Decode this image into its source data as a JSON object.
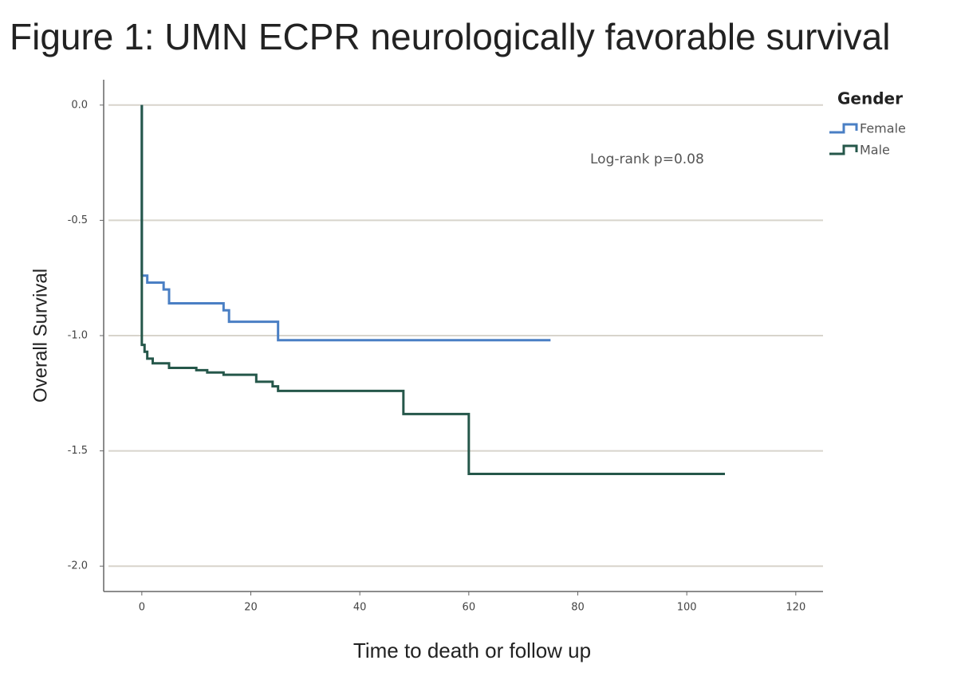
{
  "chart_data": {
    "type": "line",
    "title": "Figure 1: UMN ECPR neurologically favorable survival",
    "x_label": "Time to death or follow up",
    "y_label": "Overall Survival",
    "annotation": "Log-rank p=0.08",
    "legend_title": "Gender",
    "legend_position": "right",
    "grid": true,
    "xlim": [
      -7,
      125
    ],
    "ylim": [
      -2.11,
      0.11
    ],
    "xticks": [
      0,
      20,
      40,
      60,
      80,
      100,
      120
    ],
    "yticks": [
      {
        "value": 0,
        "label": "0.0"
      },
      -0.5,
      {
        "value": -1,
        "label": "-1.0"
      },
      -1.5,
      {
        "value": -2,
        "label": "-2.0"
      }
    ],
    "series": [
      {
        "name": "Female",
        "color": "#4a7fc4",
        "x": [
          0,
          0,
          1,
          1,
          4,
          4,
          5,
          5,
          15,
          15,
          16,
          16,
          25,
          25,
          75
        ],
        "values": [
          0,
          -0.74,
          -0.74,
          -0.77,
          -0.77,
          -0.8,
          -0.8,
          -0.86,
          -0.86,
          -0.89,
          -0.89,
          -0.94,
          -0.94,
          -1.02,
          -1.02
        ]
      },
      {
        "name": "Male",
        "color": "#25574a",
        "x": [
          0,
          0,
          0.5,
          0.5,
          1,
          1,
          2,
          2,
          5,
          5,
          10,
          10,
          12,
          12,
          15,
          15,
          21,
          21,
          24,
          24,
          25,
          25,
          48,
          48,
          60,
          60,
          107
        ],
        "values": [
          0,
          -1.04,
          -1.04,
          -1.07,
          -1.07,
          -1.1,
          -1.1,
          -1.12,
          -1.12,
          -1.14,
          -1.14,
          -1.15,
          -1.15,
          -1.16,
          -1.16,
          -1.17,
          -1.17,
          -1.2,
          -1.2,
          -1.22,
          -1.22,
          -1.24,
          -1.24,
          -1.34,
          -1.34,
          -1.6,
          -1.6
        ]
      }
    ]
  }
}
